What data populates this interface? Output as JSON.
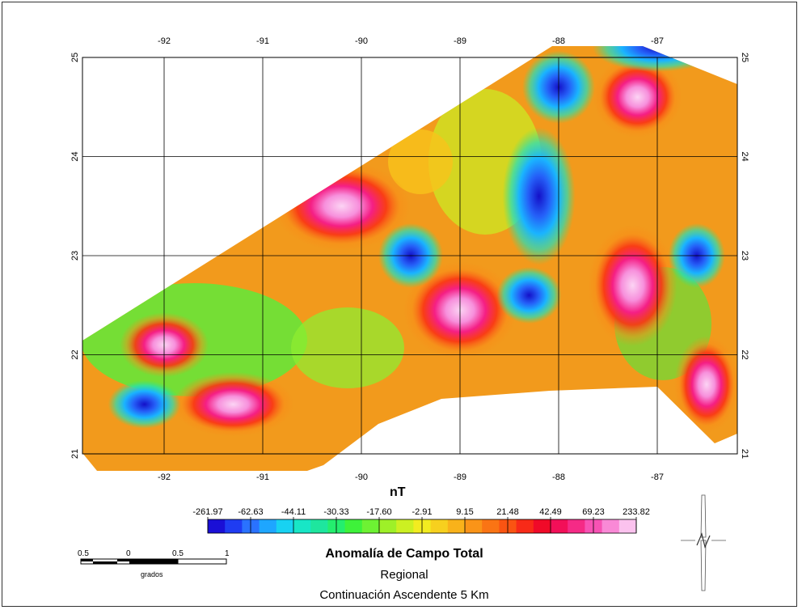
{
  "map": {
    "lon_ticks": [
      "-92",
      "-91",
      "-90",
      "-89",
      "-88",
      "-87"
    ],
    "lat_ticks": [
      "25",
      "24",
      "23",
      "22",
      "21"
    ],
    "anomalies": [
      {
        "lon": -90.2,
        "lat": 23.5,
        "kind": "high"
      },
      {
        "lon": -91.3,
        "lat": 21.5,
        "kind": "high"
      },
      {
        "lon": -89.0,
        "lat": 22.45,
        "kind": "high"
      },
      {
        "lon": -87.2,
        "lat": 24.6,
        "kind": "high"
      },
      {
        "lon": -87.25,
        "lat": 22.7,
        "kind": "high"
      },
      {
        "lon": -86.5,
        "lat": 21.7,
        "kind": "high"
      },
      {
        "lon": -92.0,
        "lat": 22.1,
        "kind": "high"
      },
      {
        "lon": -88.2,
        "lat": 23.6,
        "kind": "low"
      },
      {
        "lon": -88.0,
        "lat": 24.7,
        "kind": "low"
      },
      {
        "lon": -89.5,
        "lat": 23.0,
        "kind": "low"
      },
      {
        "lon": -88.3,
        "lat": 22.6,
        "kind": "low"
      },
      {
        "lon": -92.2,
        "lat": 21.5,
        "kind": "low"
      },
      {
        "lon": -86.6,
        "lat": 23.0,
        "kind": "low"
      },
      {
        "lon": -87.0,
        "lat": 25.1,
        "kind": "low"
      }
    ]
  },
  "legend": {
    "unit": "nT",
    "top_values": [
      "-261.97",
      "-62.63",
      "-44.11",
      "-30.33",
      "-17.60",
      "-2.91",
      "9.15",
      "21.48",
      "42.49",
      "69.23",
      "233.82"
    ],
    "colors": [
      "#1a0fd6",
      "#1f3cf2",
      "#2a72ff",
      "#1ea6ff",
      "#18d2f2",
      "#18e6c6",
      "#1ee69e",
      "#24ee6e",
      "#3ef23a",
      "#6df233",
      "#9ef028",
      "#ccf022",
      "#f2ec20",
      "#f7d01e",
      "#f9b21a",
      "#fa9418",
      "#fa7414",
      "#fa5412",
      "#f82a18",
      "#f00a28",
      "#f20f58",
      "#f52a86",
      "#f752b4",
      "#f989d6",
      "#fbc2ee"
    ]
  },
  "scale": {
    "labels": [
      "0.5",
      "0",
      "0.5",
      "1"
    ],
    "unit": "grados"
  },
  "title": {
    "main": "Anomalía de Campo Total",
    "sub1": "Regional",
    "sub2": "Continuación Ascendente 5 Km"
  }
}
